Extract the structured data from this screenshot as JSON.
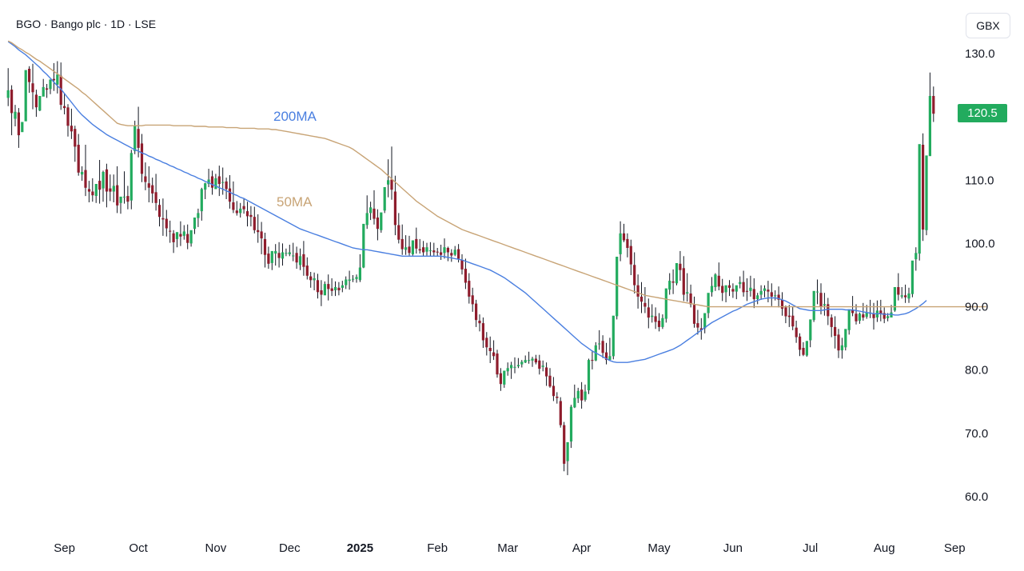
{
  "header": {
    "symbol_line": "BGO · Bango plc · 1D · LSE",
    "currency": "GBX"
  },
  "last_price_label": "120.5",
  "colors": {
    "up": "#22ab5e",
    "down": "#8e1c2c",
    "ma50": "#4a7fe0",
    "ma200": "#c8a476",
    "wick": "#131722"
  },
  "chart_data": {
    "type": "candlestick",
    "title": "BGO · Bango plc · 1D · LSE",
    "ylabel": "GBX",
    "ylim": [
      55,
      132
    ],
    "yticks": [
      "130.0",
      "120.0",
      "110.0",
      "100.0",
      "90.0",
      "80.0",
      "70.0",
      "60.0"
    ],
    "xticks": [
      "Sep",
      "Oct",
      "Nov",
      "Dec",
      "2025",
      "Feb",
      "Mar",
      "Apr",
      "May",
      "Jun",
      "Jul",
      "Aug",
      "Sep"
    ],
    "xtick_bold": [
      false,
      false,
      false,
      false,
      true,
      false,
      false,
      false,
      false,
      false,
      false,
      false,
      false
    ],
    "xtick_index": [
      16,
      37,
      59,
      80,
      100,
      122,
      142,
      163,
      185,
      206,
      228,
      249,
      269
    ],
    "candles_count": 288,
    "candles_csv": "24.8,123,127.7,124.2,121.7|24.9,124.3,125,120.6,117.1|24.9,119.7,121.9,120.8,118.5|24.9,120.7,121.4,117.1,115.1|24.9,117.6,118.3,119.2,117.9|25,119.3,124.5,127.4,122.1|25,127.6,128,125.5,123.8|25,125.3,128.4,123.9,121.2|25.1,123.5,124.3,121.5,120|25.1,121,122.4,123.3,120.9|25.1,123.2,126,124.7,123.4|25.1,124.5,125.2,124.3,123|25.2,124.4,125.6,125.9,123.6|25.2,126,128.5,125.8,124.1|25.2,125.1,128.8,126.7,123.7|25.2,126.5,128.6,121.9,121.1|25.3,121.7,123.8,121.4,120.4|25.3,121.5,122,118.6,116.9|25.3,118.6,121.3,117.7,116.5|25.4,118.1,118.6,115.3,112.9|25.4,115.6,117.3,111.2,110.7|25.4,110.9,112.2,111.3,109.9|25.4,111.6,115.6,108.8,107.5|25.5,108.6,109.9,108.2,106.5|25.5,108.2,110.3,107.6,106.6|25.5,107.5,108.9,109.4,106.4|25.5,109.9,113.2,108.5,106.3|25.6,108.7,111.5,111.3,106.6|25.6,111.7,112.6,108.2,105.7|25.6,108.7,110.9,108.2,106.7|25.6,108.2,110.9,109.1,106.5|25.7,109.2,112.2,106,104.8|25.7,106.4,106.6,107.4,104.7|25.7,107.3,111.4,107.4,106.3|25.8,107.5,109.1,106.6,105.4|25.8,106.8,114.8,114.3,105.4|25.8,114.6,119.4,118.6,114.1|25.8,118.1,121.6,115.1,113.6|25.9,115.8,117.3,111,109.7|25.9,110.6,112.8,109.7,108.4|25.9,109.5,112.2,108.8,106.5|25.9,109.2,110.4,107.9,106.4|26,108.1,111,106.4,105.2|26,106.1,107,104.2,102.7|26,104,107.1,103.8,101.2|26,103.9,105.3,102.4,101.1|26.1,102,103.6,101.9,100.1|26.1,101.6,102.1,100.2,98.5|26.1,100.7,101.3,101.8,99.4|26.2,101.5,103.5,101.1,99.6|26.2,101.2,102.9,101.9,100.6|26.2,101.5,103,100.1,99.1|26.2,100,101.4,102.1,99.5|26.3,102.3,103.5,104.1,101.5|26.3,104,105.5,104.8,102.6|26.3,105.1,108.8,108.6,103.6|26.3,108.5,109.6,109.5,107|26.4,109.4,111.8,110.1,108.9|26.4,110.6,111.5,108.8,107.7|26.4,108.6,111,110.3,108.6|26.4,110.6,112.3,109.4,107.5|26.5,109.6,112,109.7,107.7|26.5,109.8,110.4,108.6,107|26.5,108.7,110.8,106.6,105.5|26.6,106.5,109.8,105.3,104.8|26.6,105.2,106.7,104.8,104.4|26.6,104.8,106.4,105.5,104.1|26.6,105.9,107.1,105.4,104.7|26.7,105.1,106.6,104.3,102.7|26.7,104.5,105.9,104.2,102.7|26.7,104.2,105.8,102.1,101.6|26.7,102.1,104.6,101.8,100.1|26.8,101.9,103.4,100.8,98.3|26.8,100.7,101.7,98.2,96.2|26.8,98.4,99.5,96.8,96|26.9,96.9,97.6,98.8,95.8|26.9,98.4,99.9,98.8,96.5|26.9,98.5,100.2,97.7,96.2|26.9,97.6,100,98.6,96.5|27,98.4,99.2,98.5,98|27,98.3,99.8,98.6,98|27,98.1,100.1,98.1,97.2|27,98.5,99.5,97,96|27.1,96.6,99.2,98,95.8|27.1,98.3,100.4,96.3,94.9|27.1,96.5,97.8,94.9,94.3|27.1,94.8,95.5,94.2,93|27.2,94.2,95.4,94.5,92.6|27.2,94.2,95.2,92.3,91.3|27.2,92.6,94.2,91.9,90.1|27.3,91.8,94,93.6,91.9|27.3,93.6,95.1,92.8,91|27.3,92.9,94.5,92.5,91.7|27.3,92.6,94,93.1,91.7|27.4,93,93.9,92.6,91.8|27.4,93,94.1,93.4,92.3|27.4,93.4,94.8,94.3,92.8|27.4,94.1,95.7,94.3,92.7|27.5,94.4,95,94.4,93.9|27.5,94.4,95.1,94.7,93.8|27.5,94.2,98.3,96.2,93.9|27.5,96.2,101.8,103.1,96.1|27.6,102.9,107.6,104.8,102.3|27.6,104.8,106.6,105.7,103.7|27.6,105.5,108.4,103.9,103|27.7,104.1,105.4,102.3,100.5|27.7,102.1,103.9,104.9,101.7|27.7,105.2,108.4,108.9,104.8|27.7,109.3,113.3,110,107.3|27.8,110.1,115.3,108.5,106.9|27.8,108.2,110.7,102.9,101.3|27.8,102.9,104.8,100.6,100|27.8,100.7,103,99.1,98.2|27.9,99,101.3,99.4,98.2|27.9,99.5,101.2,98.5,98.1|27.9,98.3,99.1,100.5,98.1|27.9,100.7,102.5,99.2,98.4|28,99.1,100.7,98.9,98.4|28,99.4,100.4,98.6,98|28,98.7,100.1,99.4,98.1|28.1,98.9,100.2,98.9,98|28.1,98.9,100.1,98.6,97.9|28.1,98.7,99.3,98.6,98|28.1,98.6,99.8,98.2,97.4|28.2,98.5,100.8,99.4,97.6|28.2,99.3,99.5,98.6,97.2|28.2,98.5,99.1,98.1,97.1|28.2,98.2,99.6,99,98|28.3,99.1,99.9,97.6,97|28.3,97.4,98.3,95.9,95.1|28.3,96,97.6,93.8,92.8|28.4,94.1,95.3,91.6,90.5|28.4,91.8,93,90.4,89.2|28.4,90.5,91.1,87.9,86.8|28.4,87.8,88.8,87.4,86.1|28.5,87.4,88.3,84.7,83.5|28.5,85.1,86,83.6,82.3|28.5,83.5,85.3,83,81.1|28.5,82.8,84.7,82.2,81.6|28.6,82.6,83.2,79.3,78.8|28.6,79.5,80.3,77.8,76.7|28.6,77.7,79.5,79.9,77.2|28.6,79.8,81.2,80.3,79.1|28.7,80.3,81.3,80.8,78.6|28.7,80.4,82,80.5,79.5|28.7,80.6,81.9,80.8,80.3|28.8,80.9,81.6,81.3,80.4|28.8,81.2,82.3,81.6,81.1|28.8,81.6,82.9,81.6,81|28.8,81.5,82.1,81.8,80.5|28.9,81.8,82.4,81.2,80.9|28.9,81.5,82.4,80.2,79.3|28.9,80.5,81.5,80.7,79.8|28.9,80.4,81.2,79,77.5|29,79.1,80.3,77.4,77.2|29,77.5,78.9,75.9,75.1|29,75.8,76.5,75.6,74.7|29,75.1,75.7,71.3,70.9|29.1,71.3,71.8,65.2,64|29.1,65.6,66.9,68.6,63.4|29.1,68.7,74.5,74.2,67.7|29.2,74.1,77.7,75.6,74|29.2,75.5,77.2,76.7,74.8|29.2,76.9,78.1,75.2,73.9|29.2,75.3,77.7,76.6,75|29.3,76.8,81.8,81.6,76.2|29.3,81.6,83.1,81.5,80.1|29.3,81.5,84.4,83.9,81.4|29.3,84.1,86.3,84.2,83.2|29.4,84.6,85.5,82.7,81.9|29.4,82.8,84.3,81.6,80.9|29.4,81.6,85.1,82.2,81.5|29.5,82.2,87.1,88.6,81.7|29.5,88.5,95.5,97.9,88|29.5,98.3,103.5,101.6,97.2|29.5,101.6,103.1,100.5,100.2|29.6,100.7,101.6,99.3,97.8|29.6,99.6,100.6,96.7,95|29.6,96.6,98.6,93.4,92.1|29.6,93.4,95.1,91.6,89.7|29.7,91.6,93.9,90.8,89|29.7,90.6,93.1,90,89|29.7,89.9,91.3,88.3,86.6|29.7,88.4,90.4,88.6,87.5|29.8,88.5,89.9,87.6,86.5|29.8,87.8,89,86.8,86.1|29.8,86.8,88.8,88.2,86.5|29.9,88.1,91.2,92.9,87.5|29.9,92.7,95.3,94.1,91.9|29.9,94,95.9,93.8,92|29.9,93.7,96.5,96.9,93.4|30,96.8,98.8,95.8,94.1|30,96.1,98,91.9,90.9|30,92.1,95.3,92.3,90.8|30,92.1,93.5,90.4,89.9|30.1,90.3,91.6,87.3,86.7|30.1,87.4,89.5,86.7,85.6|30.1,86.6,88.2,86.3,84.8|30.1,86.6,88.7,89,85.8|30.2,89,91.7,92.2,88.2|30.2,92.3,94.7,93.3,91.6|30.2,93.1,95.3,95.1,92.5|30.3,94.9,97,93.2,92.6|30.3,93.3,94.4,92.2,90.9|30.3,92.3,93.2,93.4,90.7|30.3,93.4,94.2,93,91.7|30.4,92.8,93.7,92.4,91.4|30.4,92.4,93.3,93.4,91.2|30.4,93.6,94.8,93.9,92.9|30.4,93.9,95.7,92.3,91.6|30.5,92.5,94.5,92.4,90.9|30.5,92.5,94.9,93,91.6|30.5,92.8,94.5,91.2,89.8|30.5,91.2,92.2,91.8,90.4|30.6,91.9,93.4,92.5,91.1|30.6,92.5,93.4,92.9,91.5|30.6,92.7,94.1,92.4,90.7|30.7,92.3,93.7,91.6,90.1|30.7,91.7,92.6,91.8,91|30.7,91.9,93.2,91.1,89.9|30.7,91.1,92.3,89.7,88.6|30.8,89.9,90.2,88.5,87.4|30.8,88.6,90.3,88.4,86.8|30.8,88.6,90,86.9,86.3|30.8,86.7,87.8,85.2,84.3|30.9,85.3,85.8,83.2,82.2|30.9,83.5,84.4,82.4,82.2|30.9,82.3,84.5,84.6,82.1|30.9,84.7,86.2,88,83.6|31,87.9,91,92.5,87.6|31,92.4,94.3,92.4,90.4|31,92.2,93.7,90,88.8|31.1,90.2,92.2,90.4,88.6|31.1,90.4,91.4,88.5,87.1|31.1,88.3,88.8,86.8,85.2|31.1,86.8,88.5,85.4,83.4|31.2,85.6,86.5,83.1,81.9|31.2,83.1,85.1,83.9,81.8|31.2,83.6,86.4,86.5,83.1|31.2,86.3,88.7,89.6,85.6|31.3,89.5,91.7,89,88.5|31.3,88.9,90.4,87.7,87.2|31.3,87.8,89.1,88.9,87.3|31.4,88.8,90.6,88.3,87.8|31.4,88.4,90.3,89.1,88.1|31.4,88.9,91.1,89.1,88.2|31.4,88.9,90.6,88.2,86.4|31.5,88.3,91,89.4,87.6|31.5,89.4,91.1,88.9,87.7|31.5,89,89.9,88.1,87.4|31.5,88.2,89,88.5,87.7|31.6,88.3,90.3,89.1,88.3|31.6,89.4,92.4,93.1,89.2|31.6,93.1,95.3,91.9,91|31.6,91.6,93.1,91.8,91.3|31.7,91.8,93.5,91.5,90.6|31.7,91.3,93,92.1,90.6|31.7,92,95.5,97.3,91.5|31.8,97.5,99.4,98.5,95.7|31.8,98.4,108.9,115.7,97.3|31.8,115.6,117.4,102.2,100.4|31.8,102.1,113.5,113.9,101.3|31.9,113.8,127,123.3,118.4|31.9,123.3,124.8,120.5,119.2",
    "series": [
      {
        "name": "50MA",
        "color": "#4a7fe0",
        "values_csv": "131.9,131.5,131.1,130.6,130.2,129.8,129.3,128.8,128.3,127.8,127.2,126.7,126.1,125.5,124.9,124.4,123.7,123,122.3,121.6,120.9,120.3,119.8,119.3,118.8,118.4,118,117.6,117.2,116.9,116.6,116.3,116,115.7,115.4,115.1,114.8,114.6,114.3,114.1,113.8,113.6,113.3,113.1,112.8,112.6,112.3,112.1,111.8,111.6,111.3,111.1,110.8,110.6,110.3,110.1,109.8,109.6,109.3,109.1,108.8,108.6,108.3,108.1,107.8,107.6,107.3,107.1,106.8,106.5,106.2,105.9,105.6,105.3,105,104.7,104.4,104.1,103.8,103.5,103.2,102.9,102.6,102.3,102.1,101.9,101.7,101.5,101.3,101.1,100.9,100.7,100.5,100.3,100.1,99.9,99.7,99.5,99.3,99.2,99.1,99,99,98.9,98.8,98.7,98.6,98.5,98.4,98.3,98.2,98.1,98,98,98,98,98,98,98,98,98,98,98,98,97.9,97.8,97.7,97.6,97.5,97.4,97.2,97,96.8,96.6,96.4,96.2,96,95.8,95.5,95.2,94.9,94.6,94.2,93.8,93.4,93,92.6,92.2,91.7,91.2,90.7,90.2,89.7,89.2,88.7,88.2,87.7,87.2,86.7,86.2,85.7,85.2,84.7,84.2,83.8,83.4,83,82.7,82.4,82.1,81.8,81.5,81.3,81.2,81.2,81.2,81.2,81.3,81.4,81.5,81.6,81.7,81.9,82.1,82.3,82.5,82.7,82.9,83.1,83.3,83.6,83.9,84.3,84.7,85.1,85.5,85.9,86.3,86.7,87.1,87.5,87.8,88.1,88.4,88.7,89,89.3,89.5,89.8,90.1,90.4,90.6,90.8,91,91.2,91.3,91.4,91.4,91.4,91.3,91.1,90.9,90.6,90.3,90,89.7,89.6,89.5,89.4,89.4,89.4,89.4,89.5,89.6,89.6,89.6,89.6,89.6,89.5,89.5,89.5,89.4,89.3,89.2,89.1,89,88.9,88.9,88.9,88.8,88.8,88.8,88.7,88.7,88.8,88.9,89.1,89.4,89.7,90.1,90.5,91"
      },
      {
        "name": "200MA",
        "color": "#c8a476",
        "values_csv": "132,131.7,131.3,130.9,130.6,130.2,129.9,129.5,129.1,128.8,128.4,128,127.6,127.2,126.8,126.4,126,125.6,125.2,124.8,124.4,123.9,123.5,123,122.5,122,121.5,121,120.5,120,119.5,119,118.8,118.7,118.6,118.6,118.6,118.6,118.6,118.7,118.7,118.7,118.7,118.7,118.7,118.7,118.7,118.6,118.6,118.6,118.6,118.6,118.6,118.5,118.5,118.5,118.5,118.4,118.4,118.4,118.4,118.4,118.3,118.3,118.3,118.3,118.2,118.2,118.2,118.2,118.2,118.1,118.1,118.1,118.1,118,118,117.9,117.8,117.7,117.6,117.5,117.4,117.3,117.2,117.1,117,116.9,116.8,116.7,116.6,116.4,116.2,116,115.8,115.6,115.4,115.2,114.9,114.5,114.1,113.7,113.3,112.9,112.5,112.1,111.7,111.2,110.7,110.2,109.7,109.2,108.7,108.2,107.7,107.2,106.7,106.3,105.9,105.5,105.1,104.7,104.3,104,103.7,103.4,103.1,102.8,102.5,102.2,102,101.8,101.6,101.4,101.2,101,100.8,100.6,100.4,100.2,100,99.8,99.6,99.4,99.2,99,98.8,98.6,98.4,98.2,98,97.8,97.6,97.4,97.2,97,96.8,96.6,96.4,96.2,96,95.8,95.6,95.4,95.2,95,94.8,94.6,94.4,94.2,94,93.8,93.6,93.4,93.2,93,92.8,92.6,92.4,92.2,92,91.8,91.7,91.6,91.5,91.4,91.3,91.2,91.1,91,90.9,90.8,90.7,90.6,90.5,90.4,90.3,90.2,90.1,90,90,90,90,90,90,90,90,90,90,90,90,90,90,90,90,90,90,90,90,90,90,90,90,90,90,90,90,90,90,90,90,90,90,90,90,90,90,90,90,90,90,90,90,90,90,90,90,90,90,90,90,90,90,90,90,90,90,90,90,90,90,90,90,90,90,90,90,90,90,90,90,90,90,90,90,90,90,90,90"
      }
    ],
    "ma_labels": [
      "200MA",
      "50MA"
    ],
    "last_price": 120.5
  }
}
